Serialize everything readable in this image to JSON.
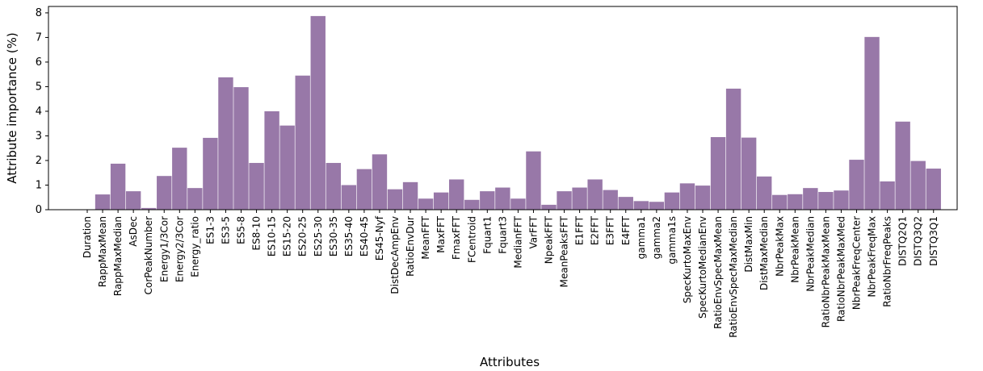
{
  "chart_data": {
    "type": "bar",
    "x_label": "Attributes",
    "y_label": "Attribute importance (%)",
    "categories": [
      "Duration",
      "RappMaxMean",
      "RappMaxMedian",
      "AsDec",
      "CorPeakNumber",
      "Energy1/3Cor",
      "Energy2/3Cor",
      "Energy_ratio",
      "ES1-3",
      "ES3-5",
      "ES5-8",
      "ES8-10",
      "ES10-15",
      "ES15-20",
      "ES20-25",
      "ES25-30",
      "ES30-35",
      "ES35-40",
      "ES40-45",
      "ES45-Nyf",
      "DistDecAmpEnv",
      "RatioEnvDur",
      "MeanFFT",
      "MaxFFT",
      "FmaxFFT",
      "FCentroid",
      "Fquart1",
      "Fquart3",
      "MedianFFT",
      "VarFFT",
      "NpeakFFT",
      "MeanPeaksFFT",
      "E1FFT",
      "E2FFT",
      "E3FFT",
      "E4FFT",
      "gamma1",
      "gamma2",
      "gamma1s",
      "SpecKurtoMaxEnv",
      "SpecKurtoMedianEnv",
      "RatioEnvSpecMaxMean",
      "RatioEnvSpecMaxMedian",
      "DistMaxMin",
      "DistMaxMedian",
      "NbrPeakMax",
      "NbrPeakMean",
      "NbrPeakMedian",
      "RatioNbrPeakMaxMean",
      "RatioNbrPeakMaxMed",
      "NbrPeakFreqCenter",
      "NbrPeakFreqMax",
      "RatioNbrFreqPeaks",
      "DISTQ2Q1",
      "DISTQ3Q2",
      "DISTQ3Q1"
    ],
    "values": [
      0,
      0.62,
      1.87,
      0.75,
      0.07,
      1.37,
      2.52,
      0.88,
      2.92,
      5.38,
      4.98,
      1.9,
      4.0,
      3.42,
      5.45,
      7.87,
      1.9,
      1.0,
      1.65,
      2.25,
      0.83,
      1.12,
      0.45,
      0.7,
      1.23,
      0.4,
      0.75,
      0.9,
      0.45,
      2.37,
      0.2,
      0.75,
      0.9,
      1.23,
      0.8,
      0.52,
      0.35,
      0.32,
      0.7,
      1.07,
      0.98,
      2.95,
      4.92,
      2.93,
      1.35,
      0.6,
      0.63,
      0.88,
      0.72,
      0.78,
      2.03,
      7.02,
      1.15,
      3.58,
      1.98,
      1.67
    ],
    "color": "#9878a8",
    "ylim": [
      0,
      8.26
    ],
    "yticks": [
      0,
      1,
      2,
      3,
      4,
      5,
      6,
      7,
      8
    ],
    "grid": false
  }
}
